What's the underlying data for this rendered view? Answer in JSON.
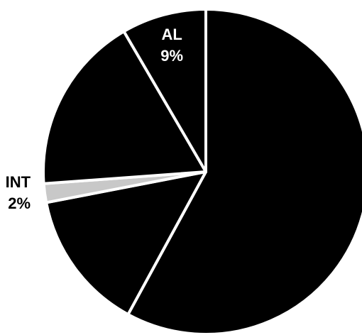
{
  "chart_data": {
    "type": "pie",
    "title": "",
    "slices": [
      {
        "label": "",
        "value": 62,
        "value_label": "",
        "color": "#000000",
        "label_color": "#ffffff",
        "label_position": "inside"
      },
      {
        "label": "",
        "value": 15,
        "value_label": "",
        "color": "#000000",
        "label_color": "#ffffff",
        "label_position": "inside"
      },
      {
        "label": "INT",
        "value": 2,
        "value_label": "2%",
        "color": "#c8c8c8",
        "label_color": "#000000",
        "label_position": "outside"
      },
      {
        "label": "",
        "value": 19,
        "value_label": "",
        "color": "#000000",
        "label_color": "#ffffff",
        "label_position": "inside"
      },
      {
        "label": "AL",
        "value": 9,
        "value_label": "9%",
        "color": "#000000",
        "label_color": "#ffffff",
        "label_position": "inside"
      }
    ],
    "start_angle_deg": 90,
    "direction": "clockwise",
    "legend": "none",
    "background": "#ffffff"
  }
}
